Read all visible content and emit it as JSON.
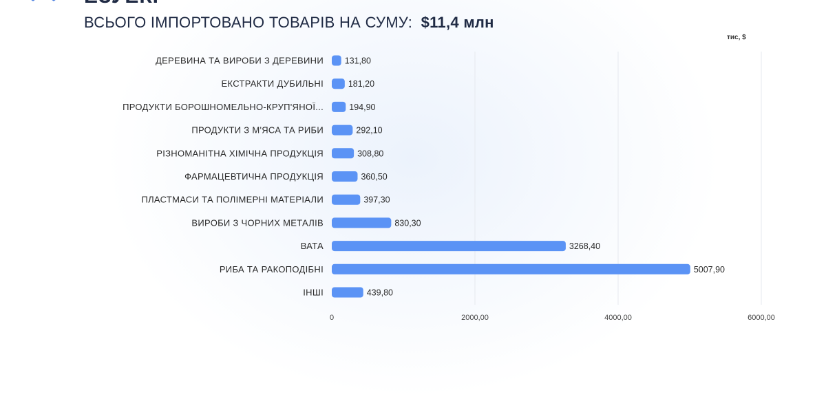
{
  "header": {
    "fragment": "ЕЗУЕКІ",
    "title_prefix": "ВСЬОГО ІМПОРТОВАНО ТОВАРІВ НА СУМУ:",
    "title_total": "$11,4 млн"
  },
  "colors": {
    "bar": "#5b93f5",
    "title": "#1f2a44",
    "grid": "#e6e9ef"
  },
  "chart_data": {
    "type": "bar",
    "orientation": "horizontal",
    "unit_label": "тис, $",
    "categories": [
      "ДЕРЕВИНА ТА ВИРОБИ З ДЕРЕВИНИ",
      "ЕКСТРАКТИ ДУБИЛЬНІ",
      "ПРОДУКТИ БОРОШНОМЕЛЬНО-КРУП'ЯНОЇ...",
      "ПРОДУКТИ З М'ЯСА ТА РИБИ",
      "РІЗНОМАНІТНА ХІМІЧНА ПРОДУКЦІЯ",
      "ФАРМАЦЕВТИЧНА ПРОДУКЦІЯ",
      "ПЛАСТМАСИ ТА ПОЛІМЕРНІ МАТЕРІАЛИ",
      "ВИРОБИ З ЧОРНИХ МЕТАЛІВ",
      "ВАТА",
      "РИБА ТА РАКОПОДІБНІ",
      "ІНШІ"
    ],
    "values": [
      131.8,
      181.2,
      194.9,
      292.1,
      308.8,
      360.5,
      397.3,
      830.3,
      3268.4,
      5007.9,
      439.8
    ],
    "value_labels": [
      "131,80",
      "181,20",
      "194,90",
      "292,10",
      "308,80",
      "360,50",
      "397,30",
      "830,30",
      "3268,40",
      "5007,90",
      "439,80"
    ],
    "xlim": [
      0,
      6000
    ],
    "xticks": [
      0,
      2000,
      4000,
      6000
    ],
    "xtick_labels": [
      "0",
      "2000,00",
      "4000,00",
      "6000,00"
    ],
    "grid": true
  }
}
